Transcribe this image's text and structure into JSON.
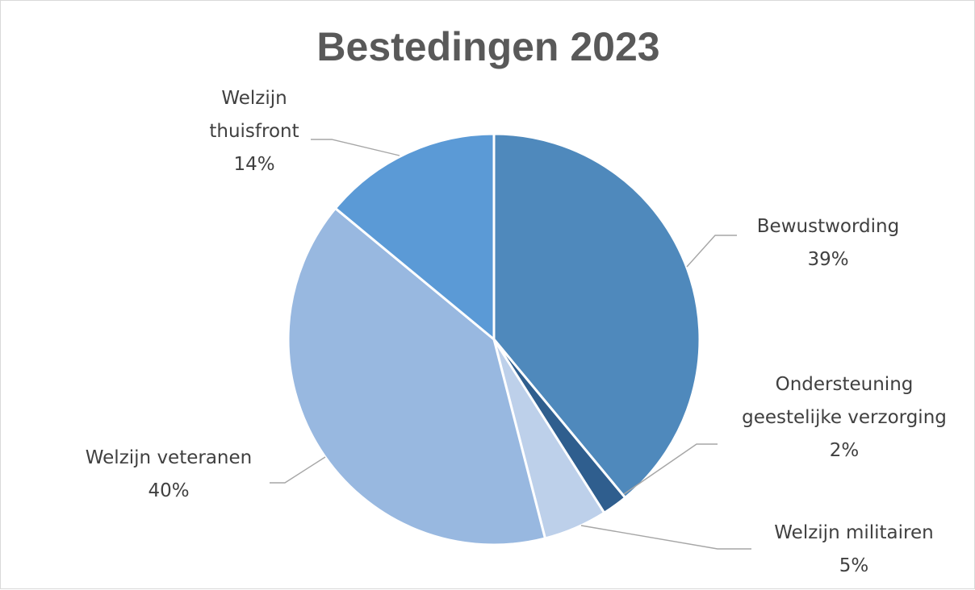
{
  "chart_data": {
    "type": "pie",
    "title": "Bestedingen 2023",
    "slices": [
      {
        "name": "Bewustwording",
        "value": 39,
        "label": "39%",
        "color": "#4f89bc"
      },
      {
        "name": "Ondersteuning geestelijke verzorging",
        "name_lines": [
          "Ondersteuning",
          "geestelijke verzorging"
        ],
        "value": 2,
        "label": "2%",
        "color": "#2f5e8e"
      },
      {
        "name": "Welzijn militairen",
        "value": 5,
        "label": "5%",
        "color": "#bdd0ea"
      },
      {
        "name": "Welzijn veteranen",
        "value": 40,
        "label": "40%",
        "color": "#98b8e0"
      },
      {
        "name": "Welzijn thuisfront",
        "name_lines": [
          "Welzijn",
          "thuisfront"
        ],
        "value": 14,
        "label": "14%",
        "color": "#5b9ad6"
      }
    ],
    "start_angle_deg": 0,
    "direction": "clockwise",
    "legend": "none",
    "data_labels": "outside-with-leader-lines"
  }
}
